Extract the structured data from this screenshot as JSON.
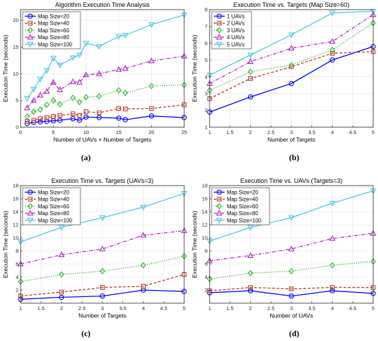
{
  "chart_data": [
    {
      "type": "line",
      "title": "Algorithm Execution Time Analysis",
      "xlabel": "Number of UAVs × Number of Targets",
      "ylabel": "Execution Time (seconds)",
      "xlim": [
        0,
        25
      ],
      "ylim": [
        0,
        22
      ],
      "xticks": [
        0,
        5,
        10,
        15,
        20,
        25
      ],
      "yticks": [
        0,
        5,
        10,
        15,
        20
      ],
      "grid": true,
      "legend": "top-left",
      "caption": "(a)",
      "x": [
        1,
        2,
        3,
        4,
        5,
        6,
        8,
        9,
        10,
        12,
        15,
        16,
        20,
        25
      ],
      "series": [
        {
          "name": "Map Size=20",
          "color": "#0000ff",
          "marker": "circle",
          "dash": "solid",
          "values": [
            0.7,
            0.9,
            1.0,
            1.1,
            1.2,
            1.3,
            1.6,
            1.3,
            1.9,
            1.8,
            1.7,
            1.4,
            2.1,
            1.8
          ]
        },
        {
          "name": "Map Size=40",
          "color": "#c0392b",
          "marker": "square",
          "dash": "dashed",
          "values": [
            1.1,
            1.3,
            1.6,
            1.8,
            2.0,
            2.2,
            2.5,
            2.2,
            2.9,
            2.7,
            3.5,
            3.4,
            3.5,
            4.2
          ]
        },
        {
          "name": "Map Size=60",
          "color": "#2db52d",
          "marker": "diamond",
          "dash": "dotted",
          "values": [
            2.0,
            2.9,
            3.3,
            4.2,
            5.0,
            4.3,
            5.5,
            4.7,
            5.6,
            5.8,
            6.9,
            6.4,
            7.7,
            7.9
          ]
        },
        {
          "name": "Map Size=80",
          "color": "#b026c9",
          "marker": "triangle",
          "dash": "dashdot",
          "values": [
            3.6,
            5.0,
            6.0,
            6.7,
            8.4,
            7.0,
            8.5,
            8.4,
            9.8,
            10.0,
            10.8,
            11.0,
            12.4,
            13.3
          ]
        },
        {
          "name": "Map Size=100",
          "color": "#4cc6ee",
          "marker": "tri-down",
          "dash": "solid",
          "values": [
            5.4,
            7.1,
            9.0,
            10.6,
            12.9,
            11.6,
            13.0,
            13.5,
            15.7,
            15.1,
            17.0,
            17.2,
            19.2,
            21.0
          ]
        }
      ]
    },
    {
      "type": "line",
      "title": "Execution Time vs. Targets (Map Size=60)",
      "xlabel": "Number of Targets",
      "ylabel": "Execution Time (seconds)",
      "xlim": [
        1,
        5
      ],
      "ylim": [
        1,
        8
      ],
      "xticks": [
        1,
        1.5,
        2,
        2.5,
        3,
        3.5,
        4,
        4.5,
        5
      ],
      "yticks": [
        1,
        2,
        3,
        4,
        5,
        6,
        7,
        8
      ],
      "grid": true,
      "legend": "top-left",
      "caption": "(b)",
      "x": [
        1,
        2,
        3,
        4,
        5
      ],
      "series": [
        {
          "name": "1 UAVs",
          "color": "#0000ff",
          "marker": "circle",
          "dash": "solid",
          "values": [
            1.9,
            2.8,
            3.6,
            5.0,
            5.8
          ]
        },
        {
          "name": "2 UAVs",
          "color": "#c0392b",
          "marker": "square",
          "dash": "dashed",
          "values": [
            2.7,
            3.9,
            4.6,
            5.4,
            5.5
          ]
        },
        {
          "name": "3 UAVs",
          "color": "#2db52d",
          "marker": "diamond",
          "dash": "dotted",
          "values": [
            3.2,
            4.3,
            4.7,
            5.6,
            7.2
          ]
        },
        {
          "name": "4 UAVs",
          "color": "#b026c9",
          "marker": "triangle",
          "dash": "dashdot",
          "values": [
            3.6,
            4.9,
            5.7,
            6.1,
            7.7
          ]
        },
        {
          "name": "5 UAVs",
          "color": "#4cc6ee",
          "marker": "tri-down",
          "dash": "solid",
          "values": [
            4.1,
            5.3,
            6.5,
            7.8,
            7.9
          ]
        }
      ]
    },
    {
      "type": "line",
      "title": "Execution Time vs. Targets (UAVs=3)",
      "xlabel": "Number of Targets",
      "ylabel": "Execution Time (seconds)",
      "xlim": [
        1,
        5
      ],
      "ylim": [
        0,
        18
      ],
      "xticks": [
        1,
        1.5,
        2,
        2.5,
        3,
        3.5,
        4,
        4.5,
        5
      ],
      "yticks": [
        2,
        4,
        6,
        8,
        10,
        12,
        14,
        16,
        18
      ],
      "grid": true,
      "legend": "top-left",
      "caption": "(c)",
      "x": [
        1,
        2,
        3,
        4,
        5
      ],
      "series": [
        {
          "name": "Map Size=20",
          "color": "#0000ff",
          "marker": "circle",
          "dash": "solid",
          "values": [
            0.6,
            0.9,
            1.1,
            2.0,
            1.8
          ]
        },
        {
          "name": "Map Size=40",
          "color": "#c0392b",
          "marker": "square",
          "dash": "dashed",
          "values": [
            1.1,
            1.7,
            2.4,
            2.6,
            4.4
          ]
        },
        {
          "name": "Map Size=60",
          "color": "#2db52d",
          "marker": "diamond",
          "dash": "dotted",
          "values": [
            3.3,
            4.4,
            4.9,
            5.8,
            7.2
          ]
        },
        {
          "name": "Map Size=80",
          "color": "#b026c9",
          "marker": "triangle",
          "dash": "dashdot",
          "values": [
            6.0,
            7.4,
            8.3,
            10.4,
            11.1
          ]
        },
        {
          "name": "Map Size=100",
          "color": "#4cc6ee",
          "marker": "tri-down",
          "dash": "solid",
          "values": [
            9.4,
            11.6,
            13.1,
            14.7,
            16.8
          ]
        }
      ]
    },
    {
      "type": "line",
      "title": "Execution Time vs. UAVs (Targets=3)",
      "xlabel": "Number of UAVs",
      "ylabel": "Execution Time (seconds)",
      "xlim": [
        1,
        5
      ],
      "ylim": [
        0,
        18
      ],
      "xticks": [
        1,
        1.5,
        2,
        2.5,
        3,
        3.5,
        4,
        4.5,
        5
      ],
      "yticks": [
        2,
        4,
        6,
        8,
        10,
        12,
        14,
        16,
        18
      ],
      "grid": true,
      "legend": "top-left",
      "caption": "(d)",
      "x": [
        1,
        2,
        3,
        4,
        5
      ],
      "series": [
        {
          "name": "Map Size=20",
          "color": "#0000ff",
          "marker": "circle",
          "dash": "solid",
          "values": [
            1.6,
            1.9,
            1.1,
            1.9,
            1.5
          ]
        },
        {
          "name": "Map Size=40",
          "color": "#c0392b",
          "marker": "square",
          "dash": "dashed",
          "values": [
            1.9,
            2.4,
            2.2,
            2.4,
            2.4
          ]
        },
        {
          "name": "Map Size=60",
          "color": "#2db52d",
          "marker": "diamond",
          "dash": "dotted",
          "values": [
            3.7,
            4.6,
            4.9,
            5.8,
            6.4
          ]
        },
        {
          "name": "Map Size=80",
          "color": "#b026c9",
          "marker": "triangle",
          "dash": "dashdot",
          "values": [
            6.5,
            7.3,
            8.3,
            9.9,
            10.7
          ]
        },
        {
          "name": "Map Size=100",
          "color": "#4cc6ee",
          "marker": "tri-down",
          "dash": "solid",
          "values": [
            9.5,
            11.6,
            13.1,
            15.3,
            17.2
          ]
        }
      ]
    }
  ]
}
